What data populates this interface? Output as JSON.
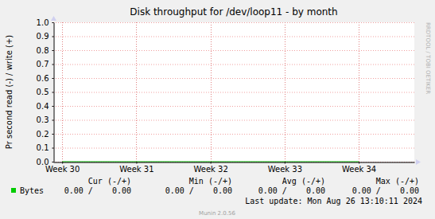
{
  "chart_data": {
    "type": "line",
    "title": "Disk throughput for /dev/loop11 - by month",
    "y_label": "Pr second read (-) / write (+)",
    "x": [
      30,
      31,
      32,
      33,
      34
    ],
    "series": [
      {
        "name": "Bytes",
        "color": "#00cc00",
        "values": [
          0,
          0,
          0,
          0,
          0
        ],
        "stats": [
          "0.00 /    0.00",
          "0.00 /    0.00",
          "0.00 /    0.00",
          "0.00 /    0.00"
        ]
      }
    ],
    "stats_columns": [
      "Cur (-/+)",
      "Min (-/+)",
      "Avg (-/+)",
      "Max (-/+)"
    ],
    "xlim": [
      29.88,
      34.75
    ],
    "xticks": [
      {
        "value": 30,
        "label": "Week 30"
      },
      {
        "value": 31,
        "label": "Week 31"
      },
      {
        "value": 32,
        "label": "Week 32"
      },
      {
        "value": 33,
        "label": "Week 33"
      },
      {
        "value": 34,
        "label": "Week 34"
      }
    ],
    "ylim": [
      0,
      1
    ],
    "yticks": [
      {
        "value": 0,
        "label": "0.0"
      },
      0.1,
      0.2,
      0.3,
      0.4,
      0.5,
      0.6,
      0.7,
      0.8,
      0.9,
      {
        "value": 1,
        "label": "1.0"
      }
    ],
    "grid": true,
    "legend": "bottom",
    "last_update": "Last update: Mon Aug 26 13:10:11 2024",
    "footer": "Munin 2.0.56",
    "watermark": "RRDTOOL / TOBI OETIKER"
  }
}
